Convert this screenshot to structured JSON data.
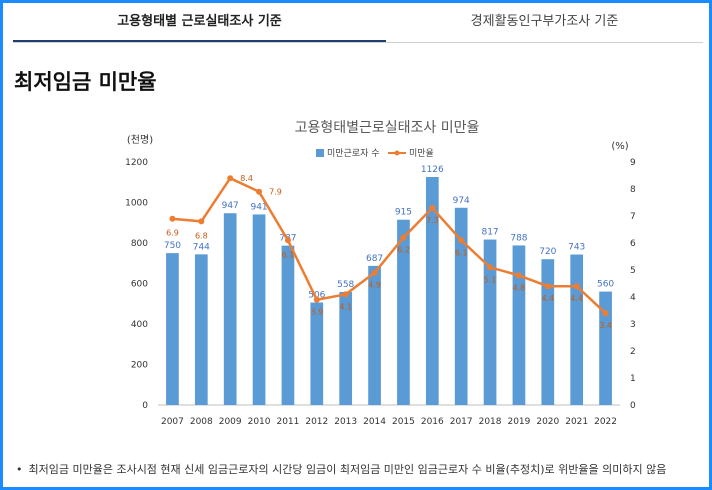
{
  "tabs": [
    {
      "label": "고용형태별 근로실태조사 기준",
      "active": true
    },
    {
      "label": "경제활동인구부가조사 기준",
      "active": false
    }
  ],
  "section_title": "최저임금 미만율",
  "footnote": "최저임금 미만율은 조사시점 현재 신세 임금근로자의 시간당 임금이 최저임금 미만인 임금근로자 수 비율(추정치)로 위반율을 의미하지 않음",
  "chart_data": {
    "type": "bar",
    "title": "고용형태별근로실태조사  미만율",
    "y_left_unit": "(천명)",
    "y_right_unit": "(%)",
    "categories": [
      "2007",
      "2008",
      "2009",
      "2010",
      "2011",
      "2012",
      "2013",
      "2014",
      "2015",
      "2016",
      "2017",
      "2018",
      "2019",
      "2020",
      "2021",
      "2022"
    ],
    "series": [
      {
        "name": "미만근로자 수",
        "type": "bar",
        "axis": "left",
        "color": "#5b9bd5",
        "values": [
          750,
          744,
          947,
          941,
          787,
          506,
          558,
          687,
          915,
          1126,
          974,
          817,
          788,
          720,
          743,
          560
        ],
        "labels": [
          "750",
          "744",
          "947",
          "941",
          "787",
          "506",
          "558",
          "687",
          "915",
          "1126",
          "974",
          "817",
          "788",
          "720",
          "743",
          "560"
        ]
      },
      {
        "name": "미만율",
        "type": "line",
        "axis": "right",
        "color": "#ed7d31",
        "values": [
          6.9,
          6.8,
          8.4,
          7.9,
          6.1,
          3.9,
          4.1,
          4.9,
          6.2,
          7.3,
          6.1,
          5.1,
          4.8,
          4.4,
          4.4,
          3.4
        ],
        "labels": [
          "6.9",
          "6.8",
          "8.4",
          "7.9",
          "6.1",
          "3.9",
          "4.1",
          "4.9",
          "6.2",
          "7.3",
          "6.1",
          "5.1",
          "4.8",
          "4.4",
          "4.4",
          "3.4"
        ]
      }
    ],
    "y_left_ticks": [
      "0",
      "200",
      "400",
      "600",
      "800",
      "1000",
      "1200"
    ],
    "y_left_range": [
      0,
      1200
    ],
    "y_right_ticks": [
      "0",
      "1",
      "2",
      "3",
      "4",
      "5",
      "6",
      "7",
      "8",
      "9"
    ],
    "y_right_range": [
      0,
      9
    ],
    "legend_position": "top-center",
    "grid": false
  }
}
